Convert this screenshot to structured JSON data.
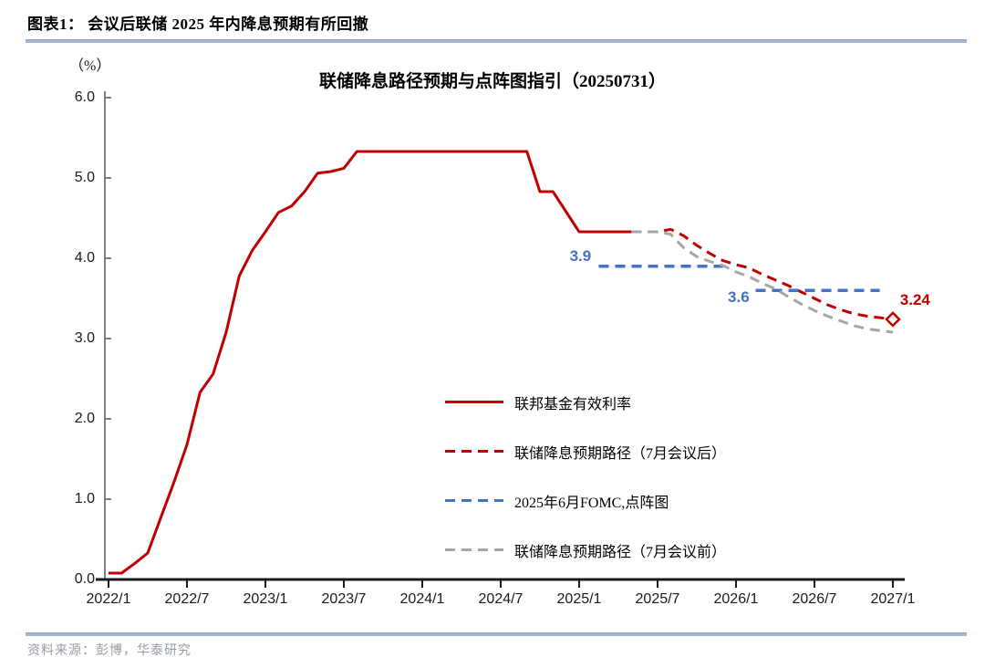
{
  "header": {
    "title": "图表1：  会议后联储 2025 年内降息预期有所回撤"
  },
  "footer": {
    "source": "资料来源：彭博，华泰研究"
  },
  "chart_data": {
    "type": "line",
    "title": "联储降息路径预期与点阵图指引（20250731）",
    "y_axis": {
      "unit_label": "（%）",
      "ylim": [
        0,
        6
      ],
      "ticks": [
        {
          "label": "6.0",
          "value": 6.0
        },
        {
          "label": "5.0",
          "value": 5.0
        },
        {
          "label": "4.0",
          "value": 4.0
        },
        {
          "label": "3.0",
          "value": 3.0
        },
        {
          "label": "2.0",
          "value": 2.0
        },
        {
          "label": "1.0",
          "value": 1.0
        },
        {
          "label": "0.0",
          "value": 0.0
        }
      ]
    },
    "x_axis": {
      "note": "month = months after 2022/1",
      "range_months": [
        0,
        60
      ],
      "ticks": [
        {
          "label": "2022/1",
          "month": 0
        },
        {
          "label": "2022/7",
          "month": 6
        },
        {
          "label": "2023/1",
          "month": 12
        },
        {
          "label": "2023/7",
          "month": 18
        },
        {
          "label": "2024/1",
          "month": 24
        },
        {
          "label": "2024/7",
          "month": 30
        },
        {
          "label": "2025/1",
          "month": 36
        },
        {
          "label": "2025/7",
          "month": 42
        },
        {
          "label": "2026/1",
          "month": 48
        },
        {
          "label": "2026/7",
          "month": 54
        },
        {
          "label": "2027/1",
          "month": 60
        }
      ]
    },
    "colors": {
      "red": "#c00000",
      "blue": "#4472c4",
      "gray": "#a6a6a6",
      "axis_gray": "#808080",
      "axis_black": "#1a1a1a"
    },
    "series": [
      {
        "name": "联邦基金有效利率",
        "style": "solid",
        "color": "#c00000",
        "width": 3,
        "points": [
          [
            0,
            0.08
          ],
          [
            1,
            0.08
          ],
          [
            2,
            0.2
          ],
          [
            3,
            0.33
          ],
          [
            4,
            0.77
          ],
          [
            5,
            1.21
          ],
          [
            6,
            1.68
          ],
          [
            7,
            2.33
          ],
          [
            8,
            2.56
          ],
          [
            9,
            3.08
          ],
          [
            10,
            3.78
          ],
          [
            11,
            4.1
          ],
          [
            12,
            4.33
          ],
          [
            13,
            4.57
          ],
          [
            14,
            4.65
          ],
          [
            15,
            4.83
          ],
          [
            16,
            5.06
          ],
          [
            17,
            5.08
          ],
          [
            18,
            5.12
          ],
          [
            19,
            5.33
          ],
          [
            32,
            5.33
          ],
          [
            33,
            4.83
          ],
          [
            34,
            4.83
          ],
          [
            36,
            4.33
          ],
          [
            40,
            4.33
          ]
        ]
      },
      {
        "name": "联储降息预期路径（7月会议后）",
        "style": "dashed",
        "color": "#c00000",
        "width": 3,
        "end_marker": "diamond",
        "end_value": 3.24,
        "points": [
          [
            40,
            4.33
          ],
          [
            42,
            4.33
          ],
          [
            43,
            4.36
          ],
          [
            44,
            4.28
          ],
          [
            45,
            4.16
          ],
          [
            46,
            4.06
          ],
          [
            47,
            3.97
          ],
          [
            48,
            3.92
          ],
          [
            49,
            3.88
          ],
          [
            50,
            3.8
          ],
          [
            51,
            3.73
          ],
          [
            52,
            3.66
          ],
          [
            53,
            3.58
          ],
          [
            54,
            3.5
          ],
          [
            55,
            3.42
          ],
          [
            56,
            3.36
          ],
          [
            57,
            3.31
          ],
          [
            58,
            3.28
          ],
          [
            59,
            3.26
          ],
          [
            60,
            3.24
          ]
        ]
      },
      {
        "name": "2025年6月FOMC,点阵图",
        "style": "dashed",
        "color": "#4472c4",
        "width": 3.5,
        "segments": [
          [
            [
              37.5,
              3.9
            ],
            [
              47,
              3.9
            ]
          ],
          [
            [
              49.5,
              3.6
            ],
            [
              59,
              3.6
            ]
          ]
        ]
      },
      {
        "name": "联储降息预期路径（7月会议前）",
        "style": "dashed",
        "color": "#a6a6a6",
        "width": 3,
        "points": [
          [
            40,
            4.33
          ],
          [
            42,
            4.33
          ],
          [
            43,
            4.3
          ],
          [
            44,
            4.13
          ],
          [
            45,
            4.02
          ],
          [
            46,
            3.96
          ],
          [
            47,
            3.91
          ],
          [
            48,
            3.83
          ],
          [
            49,
            3.77
          ],
          [
            50,
            3.69
          ],
          [
            51,
            3.62
          ],
          [
            52,
            3.52
          ],
          [
            53,
            3.43
          ],
          [
            54,
            3.35
          ],
          [
            55,
            3.28
          ],
          [
            56,
            3.22
          ],
          [
            57,
            3.16
          ],
          [
            58,
            3.12
          ],
          [
            59,
            3.1
          ],
          [
            60,
            3.08
          ]
        ]
      }
    ],
    "annotations": [
      {
        "text": "3.9",
        "color": "#4472c4",
        "x_month": 36.1,
        "y_value": 4.02
      },
      {
        "text": "3.6",
        "color": "#4472c4",
        "x_month": 48.2,
        "y_value": 3.51
      },
      {
        "text": "3.24",
        "color": "#c00000",
        "x_month": 61.7,
        "y_value": 3.48
      }
    ],
    "legend": [
      {
        "label": "联邦基金有效利率",
        "swatch": "solid-red"
      },
      {
        "label": "联储降息预期路径（7月会议后）",
        "swatch": "dash-red"
      },
      {
        "label": "2025年6月FOMC,点阵图",
        "swatch": "dash-blue"
      },
      {
        "label": "联储降息预期路径（7月会议前）",
        "swatch": "dash-gray"
      }
    ]
  }
}
